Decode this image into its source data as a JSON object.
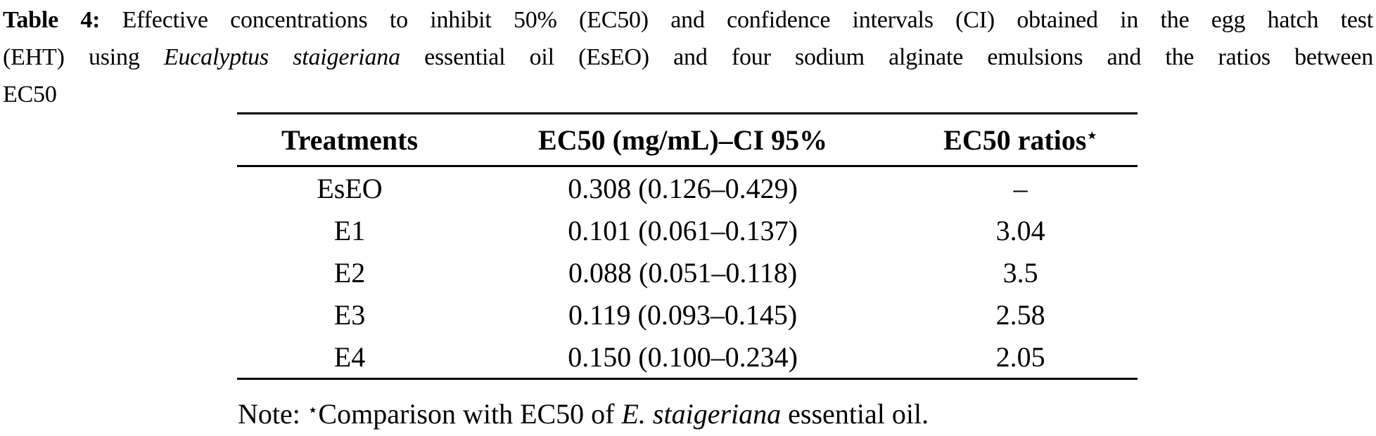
{
  "colors": {
    "background": "#ffffff",
    "text": "#000000",
    "rule": "#000000"
  },
  "caption": {
    "label": "Table 4:",
    "lines": [
      {
        "segments": [
          {
            "text": "Table 4:",
            "style": "bold"
          },
          {
            "text": " Effective concentrations to inhibit 50% (EC50) and confidence intervals (CI) obtained in the egg hatch test",
            "style": "normal"
          }
        ]
      },
      {
        "segments": [
          {
            "text": "(EHT) using ",
            "style": "normal"
          },
          {
            "text": "Eucalyptus staigeriana",
            "style": "italic"
          },
          {
            "text": " essential oil (EsEO) and four sodium alginate emulsions and the ratios between",
            "style": "normal"
          }
        ]
      },
      {
        "segments": [
          {
            "text": "EC50",
            "style": "normal"
          }
        ]
      }
    ]
  },
  "table": {
    "columns": [
      {
        "label": "Treatments"
      },
      {
        "label": "EC50 (mg/mL)–CI 95%"
      },
      {
        "label": "EC50 ratios",
        "superscript": "⋆"
      }
    ],
    "rows": [
      {
        "treatment": "EsEO",
        "ec50_ci": "0.308 (0.126–0.429)",
        "ratio": "–"
      },
      {
        "treatment": "E1",
        "ec50_ci": "0.101 (0.061–0.137)",
        "ratio": "3.04"
      },
      {
        "treatment": "E2",
        "ec50_ci": "0.088 (0.051–0.118)",
        "ratio": "3.5"
      },
      {
        "treatment": "E3",
        "ec50_ci": "0.119 (0.093–0.145)",
        "ratio": "2.58"
      },
      {
        "treatment": "E4",
        "ec50_ci": "0.150 (0.100–0.234)",
        "ratio": "2.05"
      }
    ]
  },
  "note": {
    "segments": [
      {
        "text": "Note: ",
        "style": "normal"
      },
      {
        "text": "⋆",
        "style": "sup"
      },
      {
        "text": "Comparison with EC50 of ",
        "style": "normal"
      },
      {
        "text": "E. staigeriana",
        "style": "italic"
      },
      {
        "text": " essential oil.",
        "style": "normal"
      }
    ]
  }
}
